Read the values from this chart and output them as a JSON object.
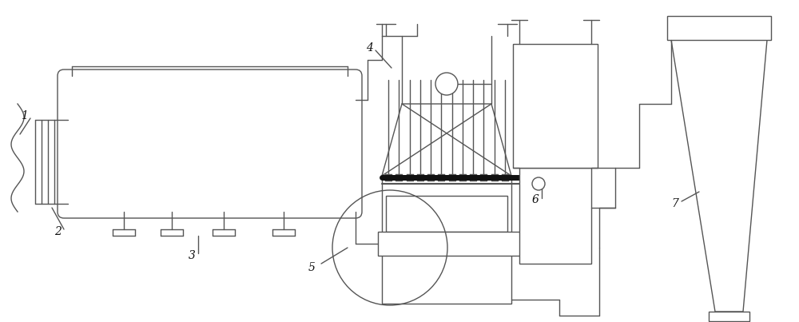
{
  "bg_color": "#ffffff",
  "line_color": "#555555",
  "dark_color": "#111111",
  "lw": 1.0,
  "fig_w": 10.0,
  "fig_h": 4.03,
  "label_fontsize": 10
}
